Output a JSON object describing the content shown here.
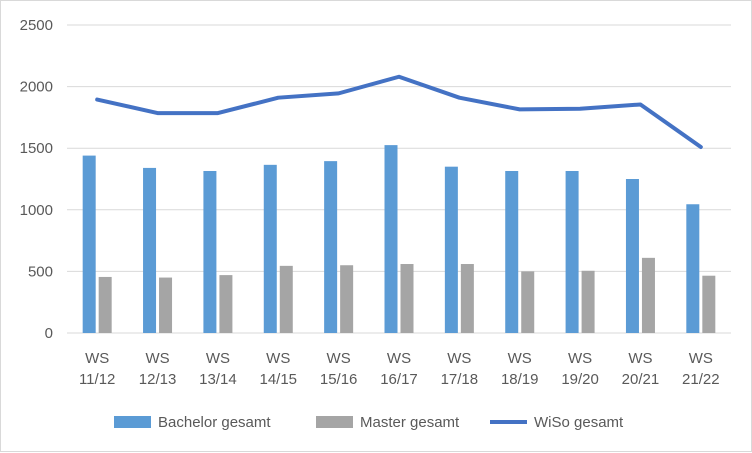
{
  "chart_data": {
    "type": "bar",
    "title": "",
    "xlabel": "",
    "ylabel": "",
    "categories": [
      [
        "WS",
        "11/12"
      ],
      [
        "WS",
        "12/13"
      ],
      [
        "WS",
        "13/14"
      ],
      [
        "WS",
        "14/15"
      ],
      [
        "WS",
        "15/16"
      ],
      [
        "WS",
        "16/17"
      ],
      [
        "WS",
        "17/18"
      ],
      [
        "WS",
        "18/19"
      ],
      [
        "WS",
        "19/20"
      ],
      [
        "WS",
        "20/21"
      ],
      [
        "WS",
        "21/22"
      ]
    ],
    "ylim": [
      0,
      2500
    ],
    "yticks": [
      "0",
      "500",
      "1000",
      "1500",
      "2000",
      "2500"
    ],
    "grid": true,
    "legend_position": "bottom",
    "series": [
      {
        "name": "Bachelor gesamt",
        "kind": "bar",
        "color": "#5b9bd5",
        "values": [
          1440,
          1340,
          1315,
          1365,
          1395,
          1525,
          1350,
          1315,
          1315,
          1250,
          1045
        ]
      },
      {
        "name": "Master gesamt",
        "kind": "bar",
        "color": "#a5a5a5",
        "values": [
          455,
          450,
          470,
          545,
          550,
          560,
          560,
          500,
          505,
          610,
          465
        ]
      },
      {
        "name": "WiSo gesamt",
        "kind": "line",
        "color": "#4472c4",
        "values": [
          1895,
          1785,
          1785,
          1910,
          1945,
          2080,
          1910,
          1815,
          1820,
          1855,
          1510
        ]
      }
    ]
  }
}
